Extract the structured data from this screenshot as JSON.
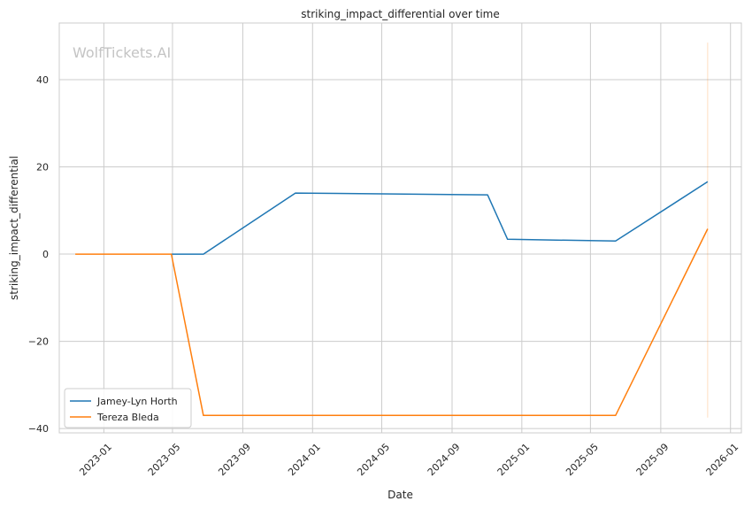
{
  "chart_data": {
    "type": "line",
    "title": "striking_impact_differential over time",
    "xlabel": "Date",
    "ylabel": "striking_impact_differential",
    "watermark": "WolfTickets.AI",
    "x_ticks": [
      "2023-01",
      "2023-05",
      "2023-09",
      "2024-01",
      "2024-05",
      "2024-09",
      "2025-01",
      "2025-05",
      "2025-09",
      "2026-01"
    ],
    "y_ticks": [
      -40,
      -20,
      0,
      20,
      40
    ],
    "xlim": [
      "2022-10-15",
      "2026-01-20"
    ],
    "ylim": [
      -41,
      53
    ],
    "grid": true,
    "legend_position": "lower-left",
    "series": [
      {
        "name": "Jamey-Lyn Horth",
        "color": "#1f77b4",
        "points": [
          {
            "x": "2023-04-29",
            "y": 0
          },
          {
            "x": "2023-06-24",
            "y": 0
          },
          {
            "x": "2023-12-02",
            "y": 14
          },
          {
            "x": "2024-11-02",
            "y": 13.6
          },
          {
            "x": "2024-12-07",
            "y": 3.4
          },
          {
            "x": "2025-06-14",
            "y": 3.0
          },
          {
            "x": "2025-11-22",
            "y": 16.6
          }
        ]
      },
      {
        "name": "Tereza Bleda",
        "color": "#ff7f0e",
        "points": [
          {
            "x": "2022-11-12",
            "y": 0
          },
          {
            "x": "2023-04-29",
            "y": 0
          },
          {
            "x": "2023-06-24",
            "y": -37
          },
          {
            "x": "2025-06-14",
            "y": -37
          },
          {
            "x": "2025-11-22",
            "y": 5.8
          }
        ]
      }
    ],
    "vertical_line": {
      "x": "2025-11-22",
      "y_from": -37.5,
      "y_to": 48.5,
      "color": "#ff7f0e"
    }
  }
}
